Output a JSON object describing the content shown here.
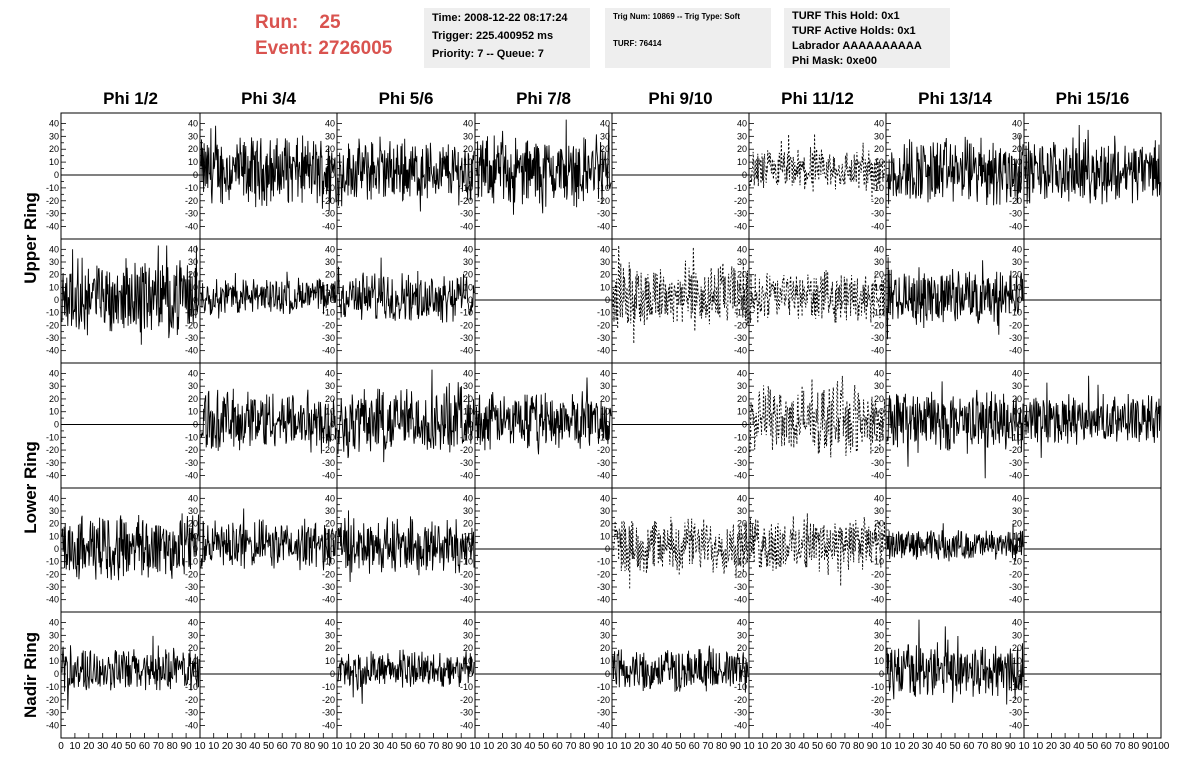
{
  "header": {
    "run_label": "Run:",
    "run_value": "25",
    "event_label": "Event:",
    "event_value": "2726005",
    "time_line": "Time: 2008-12-22 08:17:24",
    "trigger_line": "Trigger: 225.400952 ms",
    "priority_line": "Priority: 7 -- Queue: 7",
    "trig_line": "Trig Num: 10869 -- Trig Type: Soft",
    "turf_line": "TURF: 76414",
    "turf_hold_line": "TURF This Hold: 0x1",
    "turf_active_line": "TURF Active Holds: 0x1",
    "labrador_line": "Labrador AAAAAAAAAA",
    "phi_mask_line": "Phi Mask: 0xe00"
  },
  "chart_data": {
    "type": "line",
    "columns": [
      "Phi 1/2",
      "Phi 3/4",
      "Phi 5/6",
      "Phi 7/8",
      "Phi 9/10",
      "Phi 11/12",
      "Phi 13/14",
      "Phi 15/16"
    ],
    "rows": [
      "Upper Ring",
      "Lower Ring",
      "Nadir Ring"
    ],
    "ytick_labels": [
      "40",
      "30",
      "20",
      "10",
      "0",
      "-10",
      "-20",
      "-30",
      "-40"
    ],
    "xtick_labels_first": [
      "0",
      "10",
      "20",
      "30",
      "40",
      "50",
      "60",
      "70",
      "80",
      "90",
      "10"
    ],
    "xtick_labels_middle": [
      "10",
      "20",
      "30",
      "40",
      "50",
      "60",
      "70",
      "80",
      "90",
      "10"
    ],
    "xtick_labels_last": [
      "10",
      "20",
      "30",
      "40",
      "50",
      "60",
      "70",
      "80",
      "90",
      "100"
    ],
    "xlim": [
      0,
      100
    ],
    "ylim": [
      -45,
      45
    ],
    "note": "Five sub-rows of panels: Upper Ring spans sub-rows 1-2, Lower Ring sub-rows 3-4, Nadir Ring sub-row 5. Panel styles: flat = zero trace, solid = waveform, dashed = dotted waveform. Amplitudes in ADC units.",
    "panels": [
      [
        "flat",
        {
          "style": "solid",
          "amp": 22
        },
        {
          "style": "solid",
          "amp": 20
        },
        {
          "style": "solid",
          "amp": 22
        },
        "flat",
        {
          "style": "dashed",
          "amp": 14
        },
        {
          "style": "solid",
          "amp": 22
        },
        {
          "style": "solid",
          "amp": 20
        }
      ],
      [
        {
          "style": "solid",
          "amp": 24
        },
        {
          "style": "solid",
          "amp": 12
        },
        {
          "style": "solid",
          "amp": 16
        },
        "flat",
        {
          "style": "dashed",
          "amp": 22
        },
        {
          "style": "dashed",
          "amp": 16
        },
        {
          "style": "solid",
          "amp": 18
        },
        "flat"
      ],
      [
        "flat",
        {
          "style": "solid",
          "amp": 20
        },
        {
          "style": "solid",
          "amp": 22
        },
        {
          "style": "solid",
          "amp": 18
        },
        "flat",
        {
          "style": "dashed",
          "amp": 22
        },
        {
          "style": "solid",
          "amp": 20
        },
        {
          "style": "solid",
          "amp": 16
        }
      ],
      [
        {
          "style": "solid",
          "amp": 22
        },
        {
          "style": "solid",
          "amp": 16
        },
        {
          "style": "solid",
          "amp": 18
        },
        "flat",
        {
          "style": "dashed",
          "amp": 18
        },
        {
          "style": "dashed",
          "amp": 18
        },
        {
          "style": "solid",
          "amp": 10
        },
        "flat"
      ],
      [
        {
          "style": "solid",
          "amp": 14
        },
        "flat",
        {
          "style": "solid",
          "amp": 12
        },
        "flat",
        {
          "style": "solid",
          "amp": 14
        },
        "flat",
        {
          "style": "solid",
          "amp": 18
        },
        "flat"
      ]
    ]
  }
}
